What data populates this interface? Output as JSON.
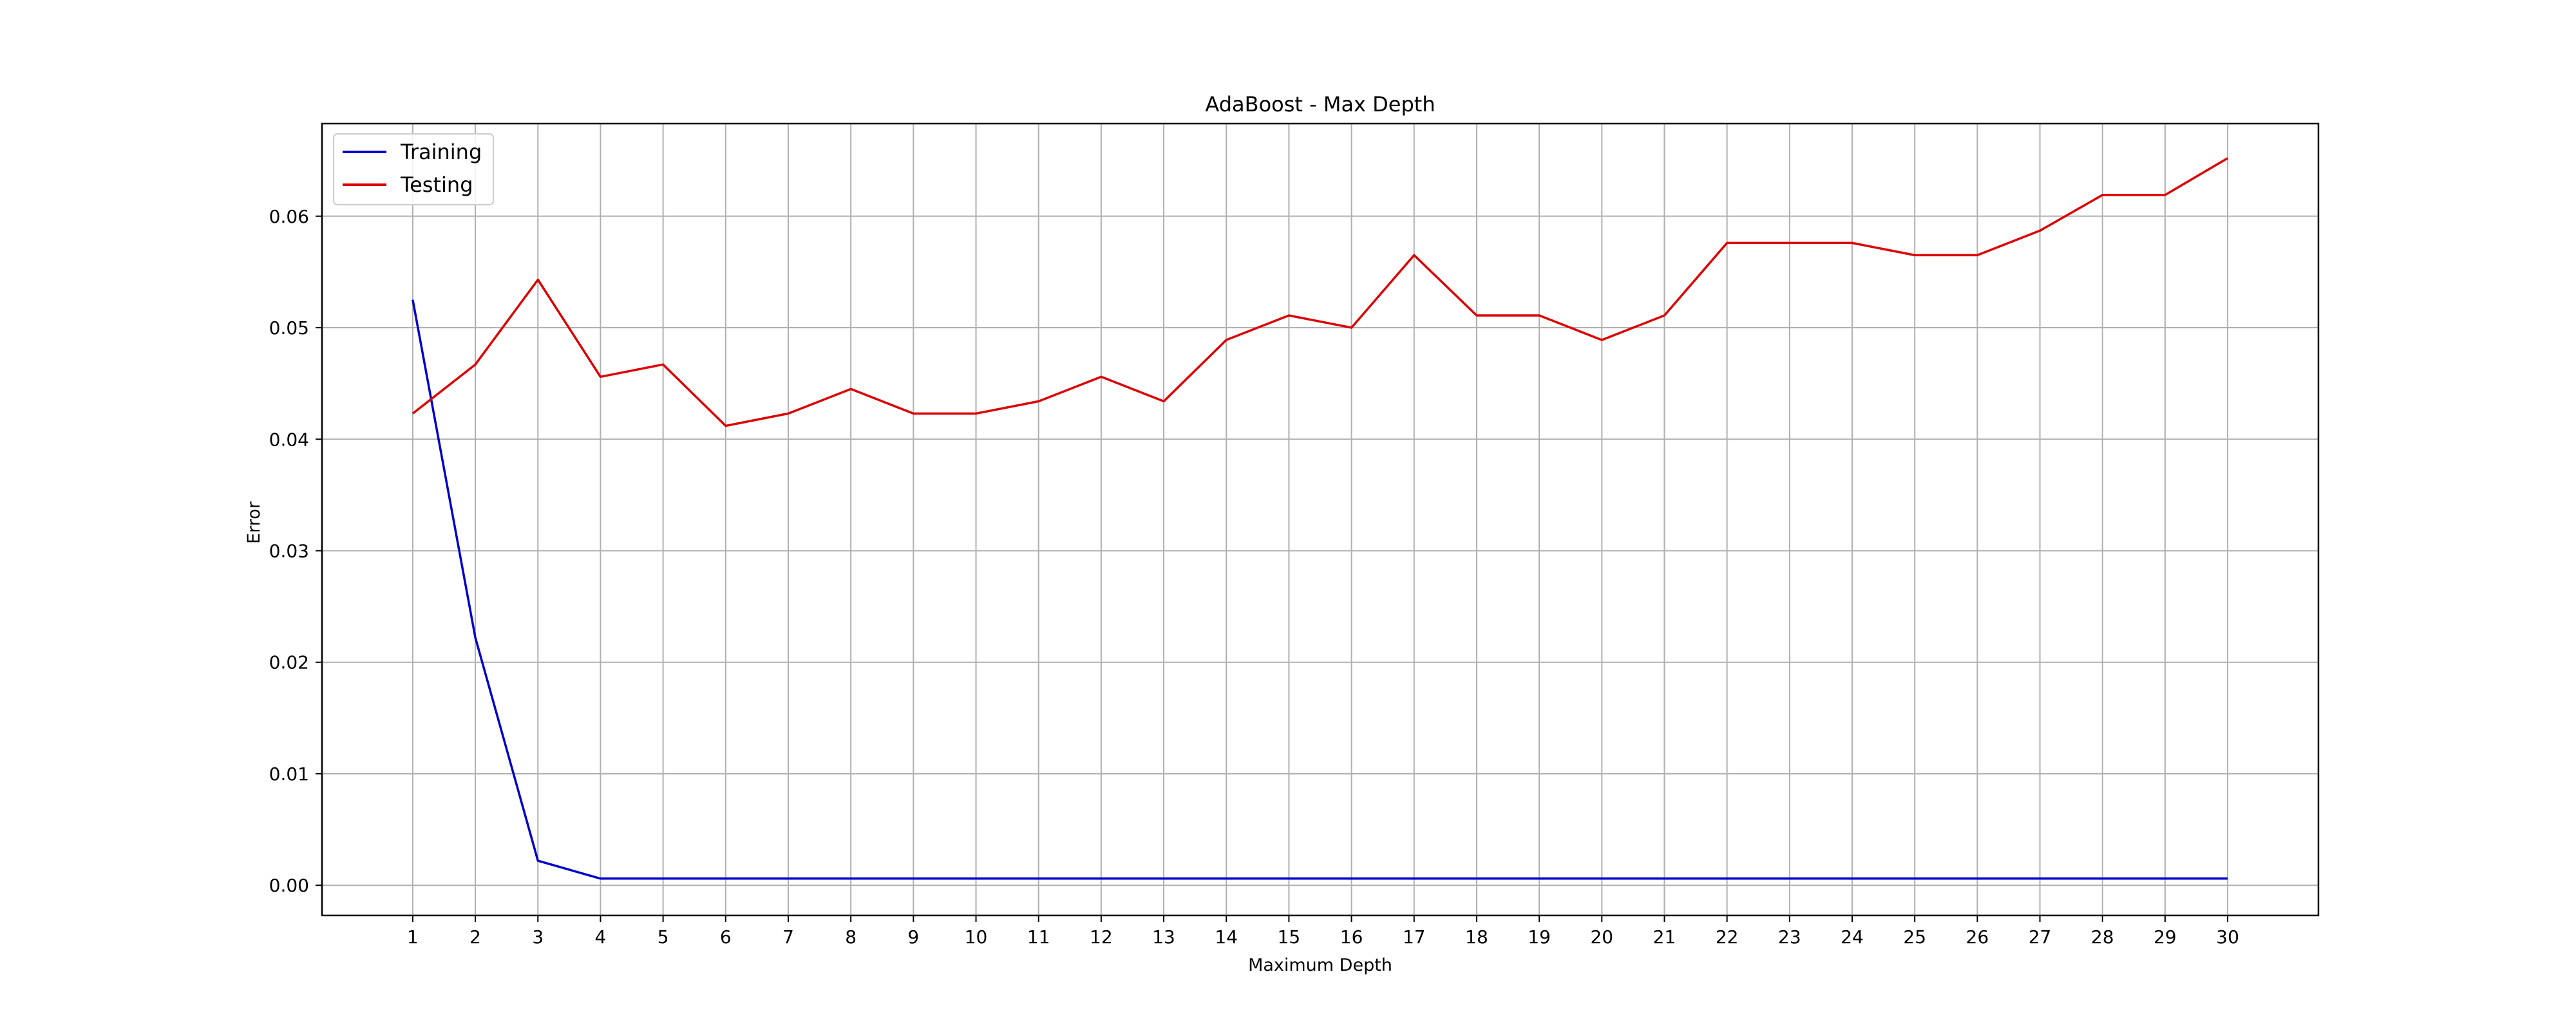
{
  "colors": {
    "training": "#0000cc",
    "testing": "#dd0000",
    "grid": "#b0b0b0",
    "axes": "#000000",
    "background": "#ffffff"
  },
  "chart_data": {
    "type": "line",
    "title": "AdaBoost - Max Depth",
    "xlabel": "Maximum Depth",
    "ylabel": "Error",
    "x": [
      1,
      2,
      3,
      4,
      5,
      6,
      7,
      8,
      9,
      10,
      11,
      12,
      13,
      14,
      15,
      16,
      17,
      18,
      19,
      20,
      21,
      22,
      23,
      24,
      25,
      26,
      27,
      28,
      29,
      30
    ],
    "x_tick_labels": [
      "1",
      "2",
      "3",
      "4",
      "5",
      "6",
      "7",
      "8",
      "9",
      "10",
      "11",
      "12",
      "13",
      "14",
      "15",
      "16",
      "17",
      "18",
      "19",
      "20",
      "21",
      "22",
      "23",
      "24",
      "25",
      "26",
      "27",
      "28",
      "29",
      "30"
    ],
    "xlim": [
      -0.45,
      31.45
    ],
    "ylim": [
      -0.0027,
      0.0683
    ],
    "y_ticks": [
      0.0,
      0.01,
      0.02,
      0.03,
      0.04,
      0.05,
      0.06
    ],
    "y_tick_labels": [
      "0.00",
      "0.01",
      "0.02",
      "0.03",
      "0.04",
      "0.05",
      "0.06"
    ],
    "grid": true,
    "legend_position": "top-left",
    "series": [
      {
        "name": "Training",
        "color": "#0000cc",
        "values": [
          0.0525,
          0.0222,
          0.0022,
          0.0006,
          0.0006,
          0.0006,
          0.0006,
          0.0006,
          0.0006,
          0.0006,
          0.0006,
          0.0006,
          0.0006,
          0.0006,
          0.0006,
          0.0006,
          0.0006,
          0.0006,
          0.0006,
          0.0006,
          0.0006,
          0.0006,
          0.0006,
          0.0006,
          0.0006,
          0.0006,
          0.0006,
          0.0006,
          0.0006,
          0.0006
        ]
      },
      {
        "name": "Testing",
        "color": "#dd0000",
        "values": [
          0.0423,
          0.0467,
          0.0543,
          0.0456,
          0.0467,
          0.0412,
          0.0423,
          0.0445,
          0.0423,
          0.0423,
          0.0434,
          0.0456,
          0.0434,
          0.0489,
          0.0511,
          0.05,
          0.0565,
          0.0511,
          0.0511,
          0.0489,
          0.0511,
          0.0576,
          0.0576,
          0.0576,
          0.0565,
          0.0565,
          0.0587,
          0.0619,
          0.0619,
          0.0652
        ]
      }
    ]
  }
}
